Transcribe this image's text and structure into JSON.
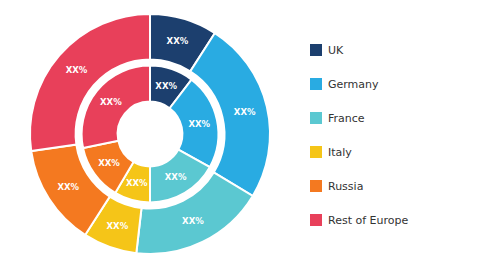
{
  "chart_data": {
    "type": "donut",
    "categories": [
      "UK",
      "Germany",
      "France",
      "Italy",
      "Russia",
      "Rest of Europe"
    ],
    "colors": [
      "#1c3f6e",
      "#29abe2",
      "#5bc8d1",
      "#f5c518",
      "#f47920",
      "#e8405a"
    ],
    "series": [
      {
        "values": [
          10,
          27,
          20,
          8,
          15,
          30
        ],
        "value_labels": [
          "XX%",
          "XX%",
          "XX%",
          "XX%",
          "XX%",
          "XX%"
        ]
      },
      {
        "values": [
          11,
          24,
          18,
          9,
          14,
          30
        ],
        "value_labels": [
          "XX%",
          "XX%",
          "XX%",
          "XX%",
          "XX%",
          "XX%"
        ]
      }
    ],
    "data_labels": true,
    "legend": "right"
  }
}
